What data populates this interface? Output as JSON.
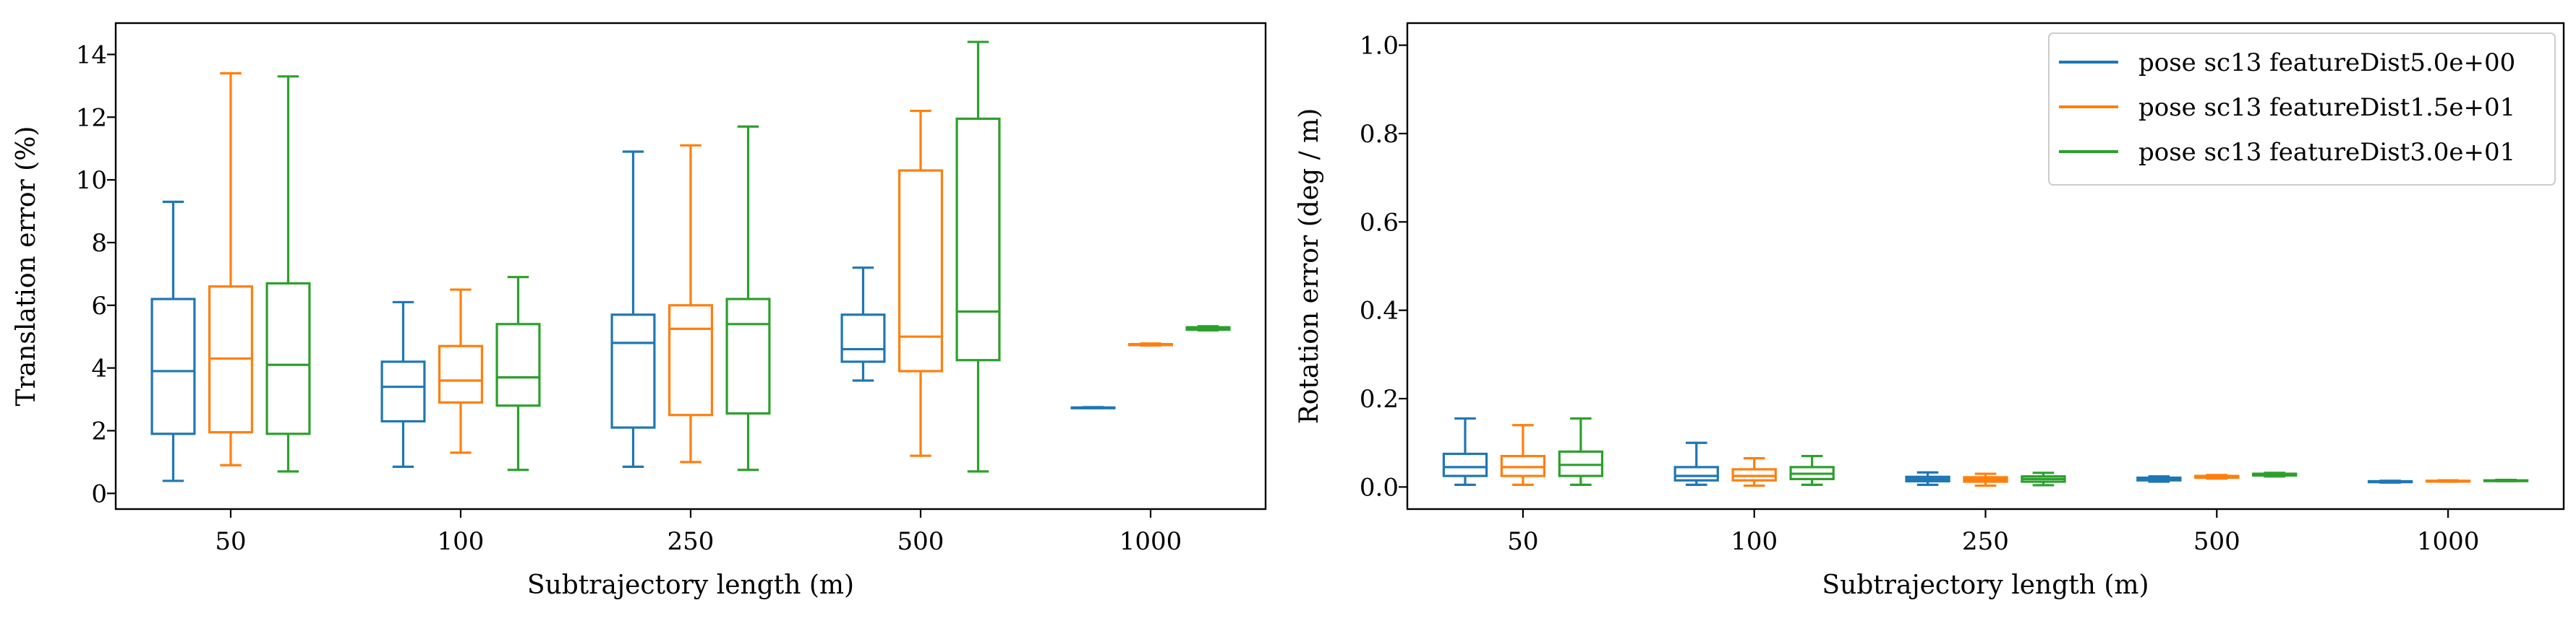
{
  "chart_data": [
    {
      "type": "box",
      "xlabel": "Subtrajectory length (m)",
      "ylabel": "Translation error (%)",
      "categories": [
        "50",
        "100",
        "250",
        "500",
        "1000"
      ],
      "ylim": [
        -0.5,
        15.0
      ],
      "yticks": [
        0,
        2,
        4,
        6,
        8,
        10,
        12,
        14
      ],
      "grid": false,
      "series": [
        {
          "color": "#1f77b4",
          "boxes": [
            {
              "whislo": 0.4,
              "q1": 1.9,
              "med": 3.9,
              "q3": 6.2,
              "whishi": 9.3
            },
            {
              "whislo": 0.85,
              "q1": 2.3,
              "med": 3.4,
              "q3": 4.2,
              "whishi": 6.1
            },
            {
              "whislo": 0.85,
              "q1": 2.1,
              "med": 4.8,
              "q3": 5.7,
              "whishi": 10.9
            },
            {
              "whislo": 3.6,
              "q1": 4.2,
              "med": 4.6,
              "q3": 5.7,
              "whishi": 7.2
            },
            {
              "whislo": 2.72,
              "q1": 2.72,
              "med": 2.73,
              "q3": 2.74,
              "whishi": 2.75
            }
          ]
        },
        {
          "color": "#ff7f0e",
          "boxes": [
            {
              "whislo": 0.9,
              "q1": 1.95,
              "med": 4.3,
              "q3": 6.6,
              "whishi": 13.4
            },
            {
              "whislo": 1.3,
              "q1": 2.9,
              "med": 3.6,
              "q3": 4.7,
              "whishi": 6.5
            },
            {
              "whislo": 1.0,
              "q1": 2.5,
              "med": 5.25,
              "q3": 6.0,
              "whishi": 11.1
            },
            {
              "whislo": 1.2,
              "q1": 3.9,
              "med": 5.0,
              "q3": 10.3,
              "whishi": 12.2
            },
            {
              "whislo": 4.72,
              "q1": 4.73,
              "med": 4.75,
              "q3": 4.76,
              "whishi": 4.78
            }
          ]
        },
        {
          "color": "#2ca02c",
          "boxes": [
            {
              "whislo": 0.7,
              "q1": 1.9,
              "med": 4.1,
              "q3": 6.7,
              "whishi": 13.3
            },
            {
              "whislo": 0.75,
              "q1": 2.8,
              "med": 3.7,
              "q3": 5.4,
              "whishi": 6.9
            },
            {
              "whislo": 0.75,
              "q1": 2.55,
              "med": 5.4,
              "q3": 6.2,
              "whishi": 11.7
            },
            {
              "whislo": 0.7,
              "q1": 4.25,
              "med": 5.8,
              "q3": 11.95,
              "whishi": 14.4
            },
            {
              "whislo": 5.2,
              "q1": 5.22,
              "med": 5.25,
              "q3": 5.3,
              "whishi": 5.33
            }
          ]
        }
      ]
    },
    {
      "type": "box",
      "xlabel": "Subtrajectory length (m)",
      "ylabel": "Rotation error (deg / m)",
      "categories": [
        "50",
        "100",
        "250",
        "500",
        "1000"
      ],
      "ylim": [
        -0.05,
        1.05
      ],
      "yticks": [
        "0.0",
        "0.2",
        "0.4",
        "0.6",
        "0.8",
        "1.0"
      ],
      "grid": false,
      "legend": "upper right",
      "series": [
        {
          "name": "pose sc13 featureDist5.0e+00",
          "color": "#1f77b4",
          "boxes": [
            {
              "whislo": 0.005,
              "q1": 0.025,
              "med": 0.045,
              "q3": 0.075,
              "whishi": 0.155
            },
            {
              "whislo": 0.005,
              "q1": 0.015,
              "med": 0.025,
              "q3": 0.045,
              "whishi": 0.1
            },
            {
              "whislo": 0.005,
              "q1": 0.013,
              "med": 0.018,
              "q3": 0.023,
              "whishi": 0.033
            },
            {
              "whislo": 0.012,
              "q1": 0.015,
              "med": 0.018,
              "q3": 0.021,
              "whishi": 0.024
            },
            {
              "whislo": 0.01,
              "q1": 0.011,
              "med": 0.012,
              "q3": 0.013,
              "whishi": 0.014
            }
          ]
        },
        {
          "name": "pose sc13 featureDist1.5e+01",
          "color": "#ff7f0e",
          "boxes": [
            {
              "whislo": 0.005,
              "q1": 0.025,
              "med": 0.045,
              "q3": 0.07,
              "whishi": 0.14
            },
            {
              "whislo": 0.003,
              "q1": 0.015,
              "med": 0.025,
              "q3": 0.04,
              "whishi": 0.065
            },
            {
              "whislo": 0.003,
              "q1": 0.012,
              "med": 0.017,
              "q3": 0.022,
              "whishi": 0.03
            },
            {
              "whislo": 0.019,
              "q1": 0.021,
              "med": 0.023,
              "q3": 0.025,
              "whishi": 0.027
            },
            {
              "whislo": 0.012,
              "q1": 0.013,
              "med": 0.0135,
              "q3": 0.014,
              "whishi": 0.015
            }
          ]
        },
        {
          "name": "pose sc13 featureDist3.0e+01",
          "color": "#2ca02c",
          "boxes": [
            {
              "whislo": 0.005,
              "q1": 0.025,
              "med": 0.05,
              "q3": 0.08,
              "whishi": 0.155
            },
            {
              "whislo": 0.005,
              "q1": 0.018,
              "med": 0.03,
              "q3": 0.045,
              "whishi": 0.07
            },
            {
              "whislo": 0.004,
              "q1": 0.012,
              "med": 0.018,
              "q3": 0.024,
              "whishi": 0.032
            },
            {
              "whislo": 0.024,
              "q1": 0.026,
              "med": 0.028,
              "q3": 0.03,
              "whishi": 0.032
            },
            {
              "whislo": 0.013,
              "q1": 0.0135,
              "med": 0.014,
              "q3": 0.015,
              "whishi": 0.016
            }
          ]
        }
      ]
    }
  ]
}
